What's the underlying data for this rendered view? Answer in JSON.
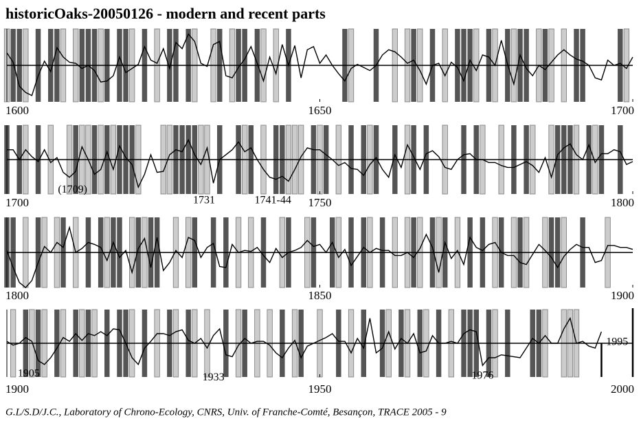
{
  "chart_data": [
    {
      "type": "ring-line",
      "title": "historicOaks-20050126 - modern and recent parts",
      "xlim": [
        1600,
        1700
      ],
      "xticks": [
        1600,
        1650,
        1700
      ],
      "ylim": [
        -3.5,
        3.5
      ],
      "baseline": 0,
      "line_color": "#000000",
      "dark_color": "#555555",
      "light_color": "#cccccc",
      "values": [
        1.2,
        0.3,
        -2.0,
        -2.6,
        -2.9,
        -1.0,
        0.4,
        -0.6,
        1.7,
        0.8,
        0.3,
        0.2,
        -0.3,
        0.0,
        -0.5,
        -1.6,
        -1.5,
        -1.0,
        0.8,
        -0.7,
        -0.3,
        0.1,
        1.8,
        0.5,
        0.2,
        1.6,
        -0.3,
        2.2,
        1.6,
        3.0,
        2.3,
        0.2,
        -0.1,
        2.0,
        2.3,
        -1.0,
        -1.2,
        -0.2,
        0.6,
        1.8,
        0.2,
        -1.5,
        0.8,
        -0.8,
        2.0,
        0.0,
        1.9,
        -1.2,
        1.5,
        1.8,
        0.2,
        1.0,
        0.0,
        -0.8,
        -1.5,
        -0.3,
        0.1,
        -0.2,
        -0.5,
        0.0,
        1.0,
        1.5,
        1.3,
        0.8,
        0.2,
        0.5,
        -0.5,
        -1.8,
        0.0,
        0.2,
        -1.0,
        0.3,
        -0.2,
        -1.5,
        0.5,
        -0.5,
        1.0,
        0.8,
        0.0,
        2.4,
        0.1,
        -1.8,
        1.0,
        -0.3,
        -1.0,
        0.0,
        -0.4,
        0.3,
        1.0,
        1.5,
        1.0,
        0.6,
        0.4,
        0.0,
        -1.2,
        -1.4,
        0.5,
        0.0,
        0.2,
        -0.3,
        0.8
      ],
      "dark_years": [
        1601,
        1602,
        1605,
        1607,
        1608,
        1612,
        1613,
        1614,
        1616,
        1618,
        1619,
        1622,
        1626,
        1627,
        1629,
        1634,
        1637,
        1638,
        1640,
        1645,
        1654,
        1659,
        1665,
        1668,
        1672,
        1673,
        1674,
        1677,
        1680,
        1682,
        1683,
        1686,
        1691,
        1692,
        1698
      ],
      "light_years": [
        1600,
        1603,
        1609,
        1611,
        1615,
        1620,
        1624,
        1630,
        1633,
        1636,
        1641,
        1643,
        1655,
        1662,
        1664,
        1666,
        1670,
        1675,
        1678,
        1681,
        1685,
        1687,
        1689,
        1699
      ],
      "annotations": []
    },
    {
      "type": "ring-line",
      "xlim": [
        1700,
        1800
      ],
      "xticks": [
        1700,
        1750,
        1800
      ],
      "ylim": [
        -3.5,
        3.5
      ],
      "baseline": 0,
      "line_color": "#000000",
      "dark_color": "#555555",
      "light_color": "#cccccc",
      "values": [
        1.0,
        1.0,
        0.0,
        1.0,
        0.3,
        -0.2,
        1.0,
        -0.3,
        0.2,
        -1.3,
        -1.8,
        -1.2,
        1.3,
        0.0,
        -1.5,
        -1.0,
        0.8,
        -1.0,
        1.4,
        0.2,
        -0.5,
        -2.8,
        -1.5,
        0.5,
        -1.3,
        -1.2,
        0.5,
        1.0,
        0.8,
        2.0,
        0.5,
        -0.5,
        1.2,
        -2.4,
        0.0,
        0.5,
        1.0,
        1.8,
        0.8,
        1.2,
        0.0,
        -1.0,
        -1.8,
        -2.0,
        -1.7,
        -2.2,
        -1.0,
        0.3,
        1.2,
        1.0,
        1.0,
        0.5,
        0.0,
        -0.6,
        -0.3,
        -0.9,
        -1.0,
        -1.6,
        -0.5,
        0.2,
        -1.0,
        -1.8,
        0.5,
        -0.8,
        1.5,
        0.3,
        -1.0,
        0.6,
        0.9,
        0.3,
        -0.8,
        -1.0,
        0.0,
        0.5,
        0.6,
        0.0,
        0.0,
        -0.3,
        -0.3,
        -0.6,
        -0.8,
        -0.8,
        -0.5,
        -0.2,
        -0.6,
        -1.3,
        0.2,
        -1.8,
        0.5,
        1.2,
        1.6,
        0.5,
        0.0,
        1.5,
        -0.3,
        0.6,
        0.6,
        1.0,
        0.8,
        -0.5,
        -0.2
      ],
      "dark_years": [
        1700,
        1702,
        1705,
        1711,
        1714,
        1716,
        1718,
        1719,
        1720,
        1727,
        1728,
        1729,
        1730,
        1734,
        1737,
        1739,
        1743,
        1744,
        1749,
        1751,
        1755,
        1757,
        1759,
        1762,
        1765,
        1767,
        1773,
        1775,
        1781,
        1783,
        1788,
        1789,
        1790,
        1793,
        1795,
        1798
      ],
      "light_years": [
        1703,
        1707,
        1710,
        1712,
        1713,
        1715,
        1717,
        1721,
        1725,
        1726,
        1731,
        1732,
        1738,
        1741,
        1745,
        1746,
        1747,
        1750,
        1753,
        1758,
        1764,
        1770,
        1776,
        1779,
        1784,
        1787,
        1791,
        1794
      ],
      "annotations": [
        {
          "text": "(1709)",
          "x": 1710.5,
          "y": -3.1
        },
        {
          "text": "1731",
          "x": 1731.5,
          "y": -4.2
        },
        {
          "text": "1741-44",
          "x": 1742.5,
          "y": -4.2
        }
      ]
    },
    {
      "type": "ring-line",
      "xlim": [
        1800,
        1900
      ],
      "xticks": [
        1800,
        1850,
        1900
      ],
      "ylim": [
        -3.5,
        3.5
      ],
      "baseline": 0,
      "line_color": "#000000",
      "dark_color": "#555555",
      "light_color": "#cccccc",
      "values": [
        0.2,
        -1.5,
        -3.0,
        -3.5,
        -2.8,
        -1.0,
        0.6,
        0.0,
        1.0,
        0.5,
        2.5,
        0.0,
        0.4,
        1.0,
        0.8,
        0.5,
        -0.8,
        1.0,
        -0.5,
        0.2,
        -2.0,
        0.4,
        1.4,
        -1.5,
        1.5,
        -1.8,
        -1.0,
        0.2,
        -0.5,
        1.5,
        1.2,
        -0.5,
        0.5,
        0.9,
        -1.4,
        -1.5,
        0.8,
        0.0,
        0.2,
        0.1,
        0.5,
        -0.3,
        -1.0,
        0.4,
        -0.5,
        0.0,
        0.2,
        0.5,
        1.2,
        0.6,
        0.8,
        0.0,
        1.0,
        -0.5,
        0.3,
        -1.3,
        -0.4,
        0.5,
        0.0,
        0.4,
        0.2,
        0.2,
        -0.3,
        -0.3,
        0.0,
        -0.5,
        0.4,
        1.8,
        0.5,
        -2.0,
        1.0,
        -0.6,
        0.2,
        -1.2,
        1.5,
        0.5,
        0.2,
        0.8,
        1.0,
        0.0,
        -0.3,
        -0.3,
        -1.0,
        -1.2,
        -0.2,
        0.8,
        0.2,
        -0.5,
        -1.5,
        -0.4,
        0.3,
        0.8,
        0.5,
        0.5,
        -1.0,
        -0.8,
        0.7,
        0.7,
        0.5,
        0.5,
        0.3
      ],
      "dark_years": [
        1800,
        1801,
        1805,
        1809,
        1813,
        1815,
        1817,
        1818,
        1821,
        1823,
        1824,
        1830,
        1833,
        1835,
        1841,
        1845,
        1849,
        1852,
        1855,
        1857,
        1860,
        1865,
        1868,
        1870,
        1874,
        1876,
        1879,
        1882,
        1887,
        1888,
        1892
      ],
      "light_years": [
        1803,
        1806,
        1808,
        1811,
        1816,
        1820,
        1822,
        1827,
        1829,
        1837,
        1839,
        1844,
        1848,
        1853,
        1858,
        1862,
        1864,
        1866,
        1869,
        1872,
        1878,
        1881,
        1883,
        1886,
        1889,
        1896
      ],
      "annotations": []
    },
    {
      "type": "ring-line",
      "xlim": [
        1900,
        2000
      ],
      "xticks": [
        1900,
        1950,
        2000
      ],
      "ylim": [
        -3.5,
        3.5
      ],
      "baseline": 0,
      "line_color": "#000000",
      "dark_color": "#555555",
      "light_color": "#cccccc",
      "values": [
        0.2,
        -0.2,
        0.0,
        0.6,
        0.2,
        -1.8,
        -2.2,
        -1.5,
        -0.5,
        0.6,
        0.2,
        1.0,
        0.3,
        1.0,
        0.8,
        1.2,
        0.8,
        1.5,
        1.4,
        0.0,
        -1.5,
        -2.2,
        -0.5,
        0.2,
        1.0,
        1.0,
        0.8,
        1.2,
        1.4,
        0.3,
        0.0,
        0.5,
        -0.5,
        0.8,
        1.5,
        -1.2,
        -1.4,
        -0.2,
        0.5,
        0.0,
        0.2,
        0.2,
        -0.2,
        -1.0,
        -1.5,
        -0.5,
        0.3,
        -1.5,
        -0.3,
        0.0,
        0.3,
        0.6,
        1.0,
        0.2,
        0.2,
        -1.0,
        0.5,
        -0.5,
        2.6,
        -1.0,
        -0.5,
        1.2,
        -0.6,
        0.5,
        0.0,
        1.0,
        -1.0,
        -0.8,
        0.8,
        0.0,
        0.0,
        0.2,
        0.0,
        1.0,
        1.4,
        1.2,
        -2.3,
        -1.5,
        -1.5,
        -1.2,
        -1.3,
        -1.4,
        -1.5,
        -0.5,
        0.5,
        0.0,
        0.8,
        0.0,
        0.0,
        1.5,
        2.6,
        0.0,
        0.2,
        -0.3,
        -0.5,
        1.2,
        null,
        null,
        null,
        null,
        null
      ],
      "dark_years": [
        1903,
        1905,
        1908,
        1911,
        1913,
        1916,
        1918,
        1919,
        1922,
        1926,
        1929,
        1935,
        1938,
        1944,
        1947,
        1953,
        1957,
        1960,
        1963,
        1966,
        1969,
        1973,
        1974,
        1975,
        1977,
        1980,
        1984,
        1985
      ],
      "light_years": [
        1901,
        1904,
        1906,
        1909,
        1912,
        1914,
        1920,
        1924,
        1927,
        1930,
        1932,
        1937,
        1940,
        1942,
        1946,
        1950,
        1955,
        1961,
        1964,
        1967,
        1971,
        1978,
        1986,
        1989,
        1990,
        1991
      ],
      "vlines": [
        1995,
        2000
      ],
      "annotations": [
        {
          "text": "1905",
          "x": 1903.5,
          "y": -3.2
        },
        {
          "text": "1933",
          "x": 1933,
          "y": -3.6
        },
        {
          "text": "1976",
          "x": 1976,
          "y": -3.4
        },
        {
          "text": "1995",
          "x": 1997.5,
          "y": 0.1
        }
      ]
    }
  ],
  "footer": "G.L/S.D/J.C., Laboratory of Chrono-Ecology, CNRS, Univ. of Franche-Comté, Besançon, TRACE 2005 - 9"
}
